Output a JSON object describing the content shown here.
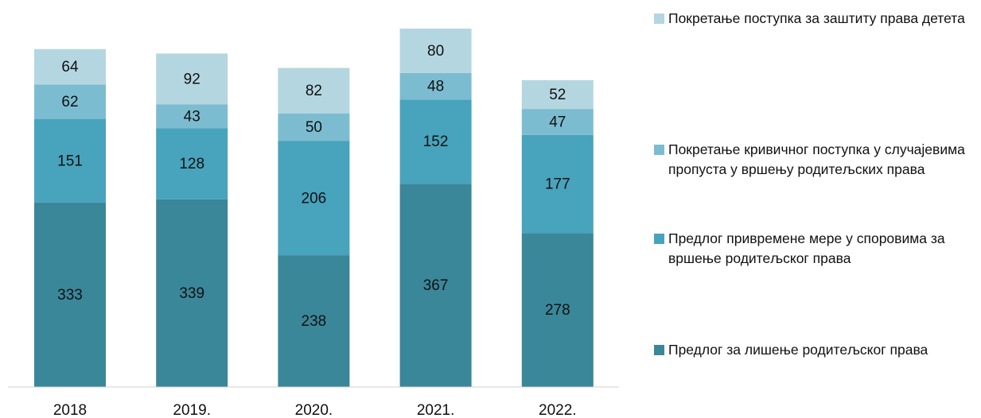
{
  "chart_data": {
    "type": "bar",
    "stacked": true,
    "categories": [
      "2018",
      "2019.",
      "2020.",
      "2021.",
      "2022."
    ],
    "series": [
      {
        "name": "Предлог за лишење родитељског права",
        "color": "#3a8799",
        "values": [
          333,
          339,
          238,
          367,
          278
        ]
      },
      {
        "name": "Предлог привремене мере у споровима за вршење родитељског права",
        "color": "#48a3bc",
        "values": [
          151,
          128,
          206,
          152,
          177
        ]
      },
      {
        "name": "Покретање кривичног поступка у случајевима пропуста у вршењу родитељских права",
        "color": "#7cbcd0",
        "values": [
          62,
          43,
          50,
          48,
          47
        ]
      },
      {
        "name": "Покретање поступка за заштиту права детета",
        "color": "#b4d6e1",
        "values": [
          64,
          92,
          82,
          80,
          52
        ]
      }
    ],
    "legend": "right"
  }
}
